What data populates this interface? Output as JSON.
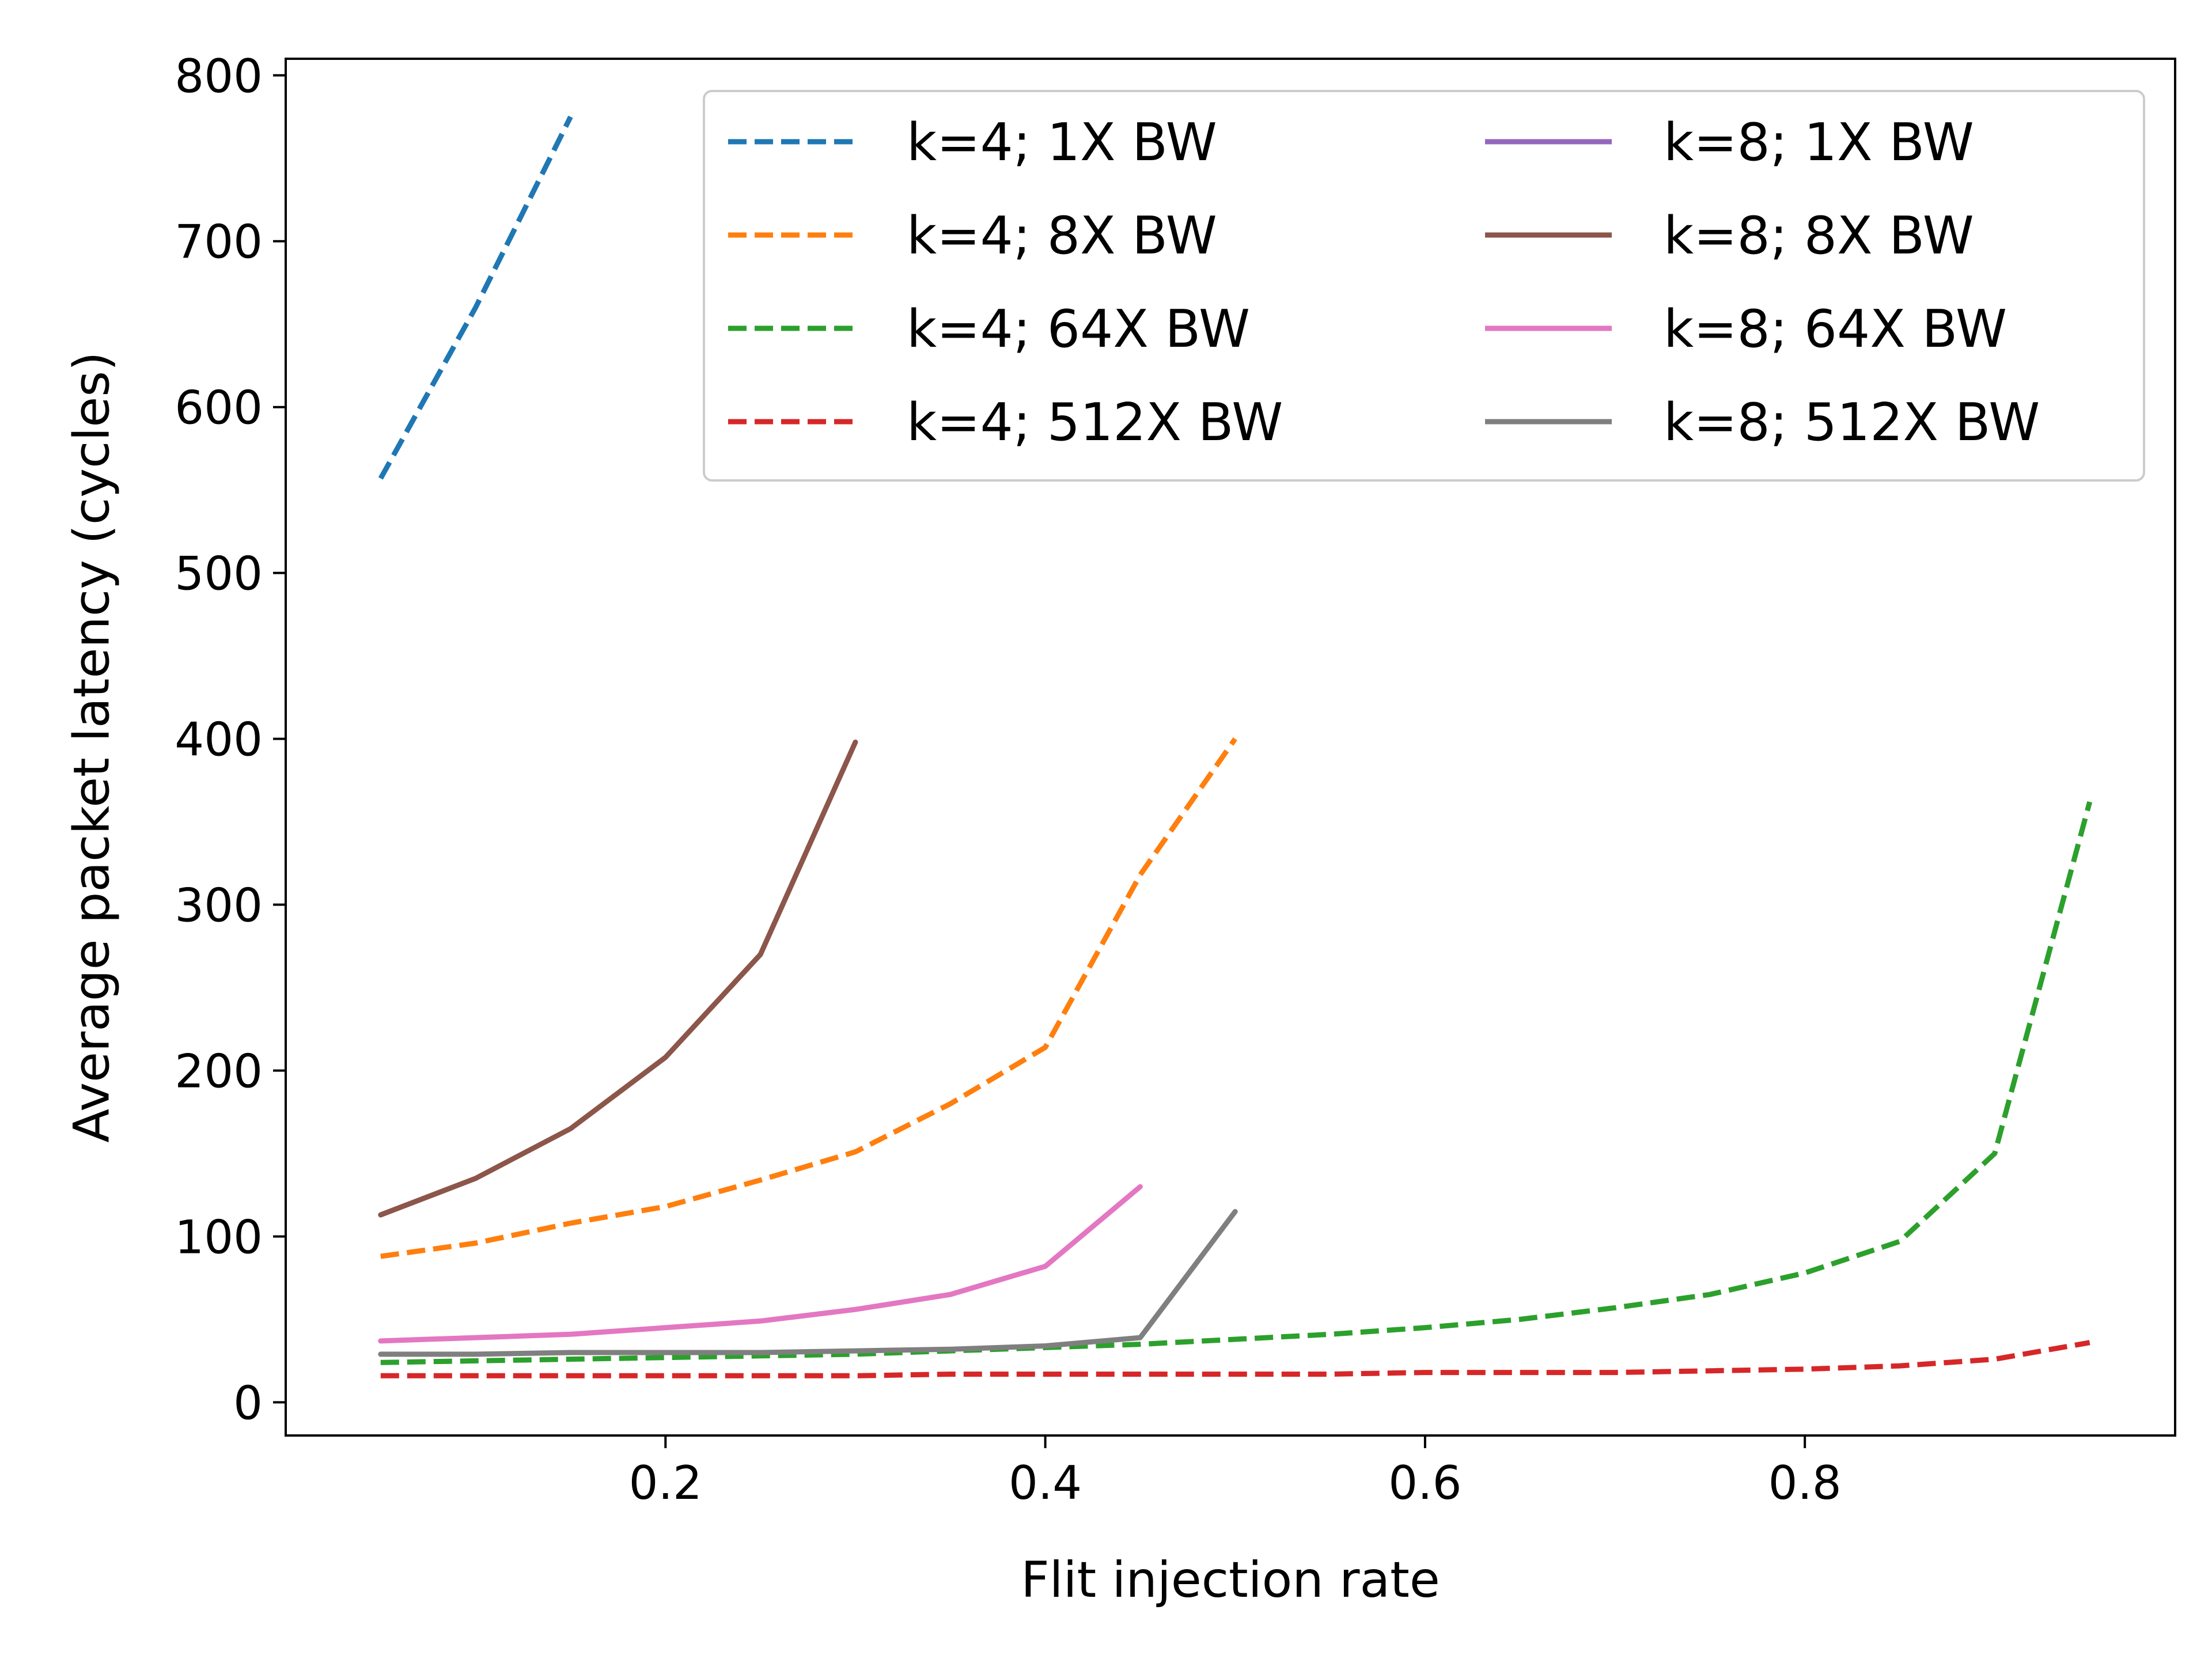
{
  "chart_data": {
    "type": "line",
    "title": "",
    "xlabel": "Flit injection rate",
    "ylabel": "Average packet latency (cycles)",
    "xlim": [
      0.0,
      0.995
    ],
    "ylim": [
      -20,
      810
    ],
    "xticks": [
      0.2,
      0.4,
      0.6,
      0.8
    ],
    "xtick_labels": [
      "0.2",
      "0.4",
      "0.6",
      "0.8"
    ],
    "yticks": [
      0,
      100,
      200,
      300,
      400,
      500,
      600,
      700,
      800
    ],
    "ytick_labels": [
      "0",
      "100",
      "200",
      "300",
      "400",
      "500",
      "600",
      "700",
      "800"
    ],
    "grid": false,
    "legend": {
      "position": "upper-right",
      "columns": 2
    },
    "series": [
      {
        "name": "k=4; 1X BW",
        "color": "#1f77b4",
        "dash": "dashed",
        "x": [
          0.05,
          0.1,
          0.15
        ],
        "y": [
          557,
          660,
          775
        ]
      },
      {
        "name": "k=4; 8X BW",
        "color": "#ff7f0e",
        "dash": "dashed",
        "x": [
          0.05,
          0.1,
          0.15,
          0.2,
          0.25,
          0.3,
          0.35,
          0.4,
          0.45,
          0.5
        ],
        "y": [
          88,
          96,
          108,
          118,
          134,
          151,
          180,
          214,
          318,
          400
        ]
      },
      {
        "name": "k=4; 64X BW",
        "color": "#2ca02c",
        "dash": "dashed",
        "x": [
          0.05,
          0.1,
          0.15,
          0.2,
          0.25,
          0.3,
          0.35,
          0.4,
          0.45,
          0.5,
          0.55,
          0.6,
          0.65,
          0.7,
          0.75,
          0.8,
          0.85,
          0.9,
          0.95
        ],
        "y": [
          24,
          25,
          26,
          27,
          28,
          29,
          31,
          33,
          35,
          38,
          41,
          45,
          50,
          57,
          65,
          78,
          97,
          150,
          362
        ]
      },
      {
        "name": "k=4; 512X BW",
        "color": "#d62728",
        "dash": "dashed",
        "x": [
          0.05,
          0.1,
          0.15,
          0.2,
          0.25,
          0.3,
          0.35,
          0.4,
          0.45,
          0.5,
          0.55,
          0.6,
          0.65,
          0.7,
          0.75,
          0.8,
          0.85,
          0.9,
          0.95
        ],
        "y": [
          16,
          16,
          16,
          16,
          16,
          16,
          17,
          17,
          17,
          17,
          17,
          18,
          18,
          18,
          19,
          20,
          22,
          26,
          36
        ]
      },
      {
        "name": "k=8; 1X BW",
        "color": "#9467bd",
        "dash": "solid",
        "x": [],
        "y": []
      },
      {
        "name": "k=8; 8X BW",
        "color": "#8c564b",
        "dash": "solid",
        "x": [
          0.05,
          0.1,
          0.15,
          0.2,
          0.25,
          0.3
        ],
        "y": [
          113,
          135,
          165,
          208,
          270,
          398
        ]
      },
      {
        "name": "k=8; 64X BW",
        "color": "#e377c2",
        "dash": "solid",
        "x": [
          0.05,
          0.1,
          0.15,
          0.2,
          0.25,
          0.3,
          0.35,
          0.4,
          0.45
        ],
        "y": [
          37,
          39,
          41,
          45,
          49,
          56,
          65,
          82,
          130
        ]
      },
      {
        "name": "k=8; 512X BW",
        "color": "#7f7f7f",
        "dash": "solid",
        "x": [
          0.05,
          0.1,
          0.15,
          0.2,
          0.25,
          0.3,
          0.35,
          0.4,
          0.45,
          0.5
        ],
        "y": [
          29,
          29,
          30,
          30,
          30,
          31,
          32,
          34,
          39,
          115
        ]
      }
    ]
  }
}
